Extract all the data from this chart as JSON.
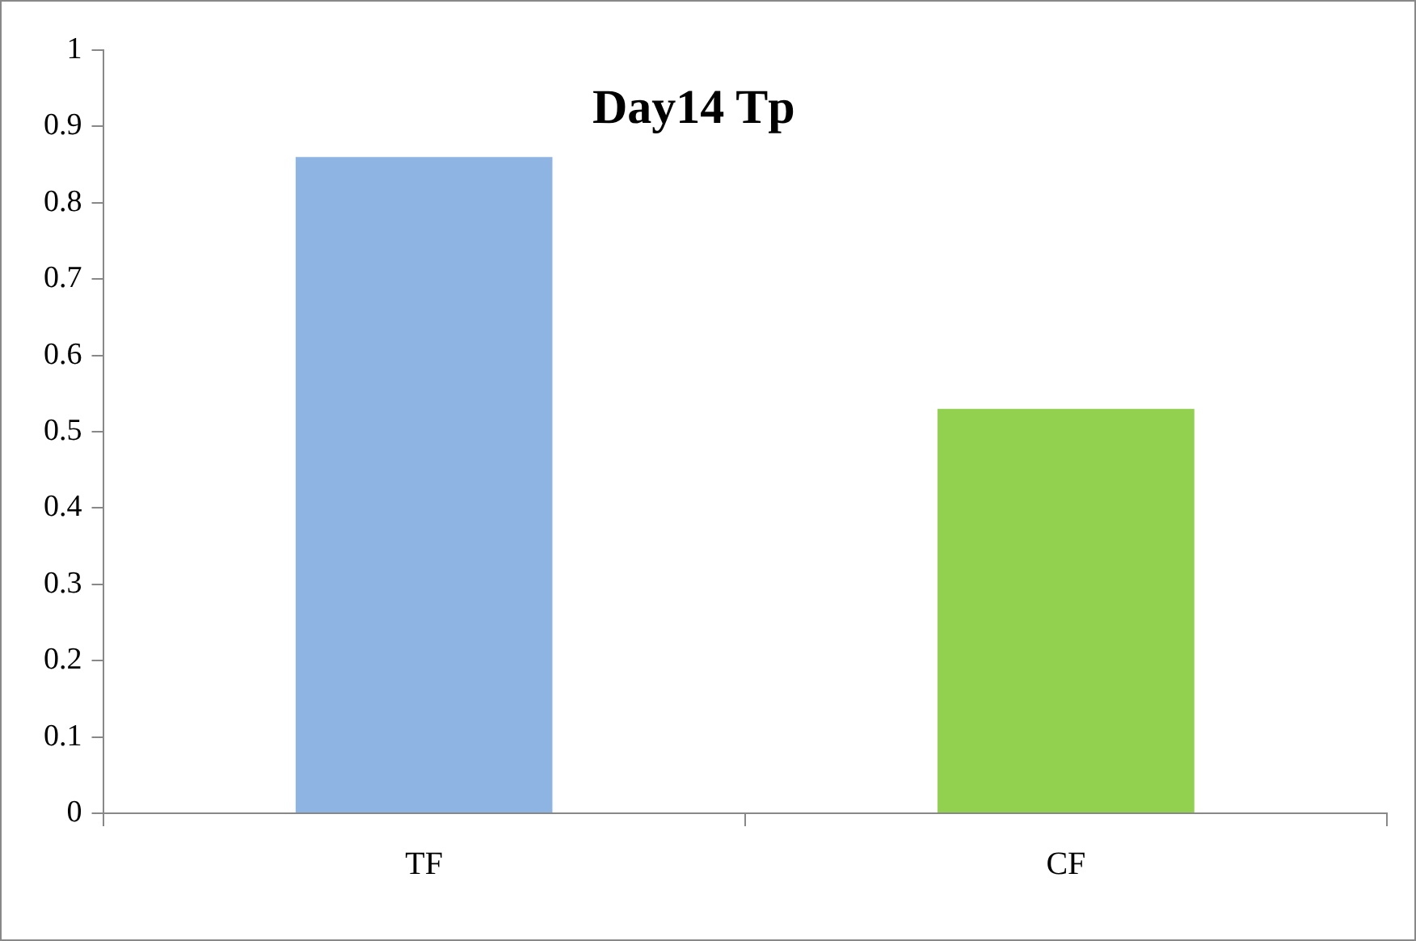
{
  "chart_data": {
    "type": "bar",
    "title": "Day14 Tp",
    "categories": [
      "TF",
      "CF"
    ],
    "values": [
      0.86,
      0.53
    ],
    "colors": [
      "#8eb4e3",
      "#92d050"
    ],
    "ylim": [
      0,
      1
    ],
    "yticks": [
      0,
      0.1,
      0.2,
      0.3,
      0.4,
      0.5,
      0.6,
      0.7,
      0.8,
      0.9,
      1
    ],
    "grid": false,
    "legend": false
  }
}
